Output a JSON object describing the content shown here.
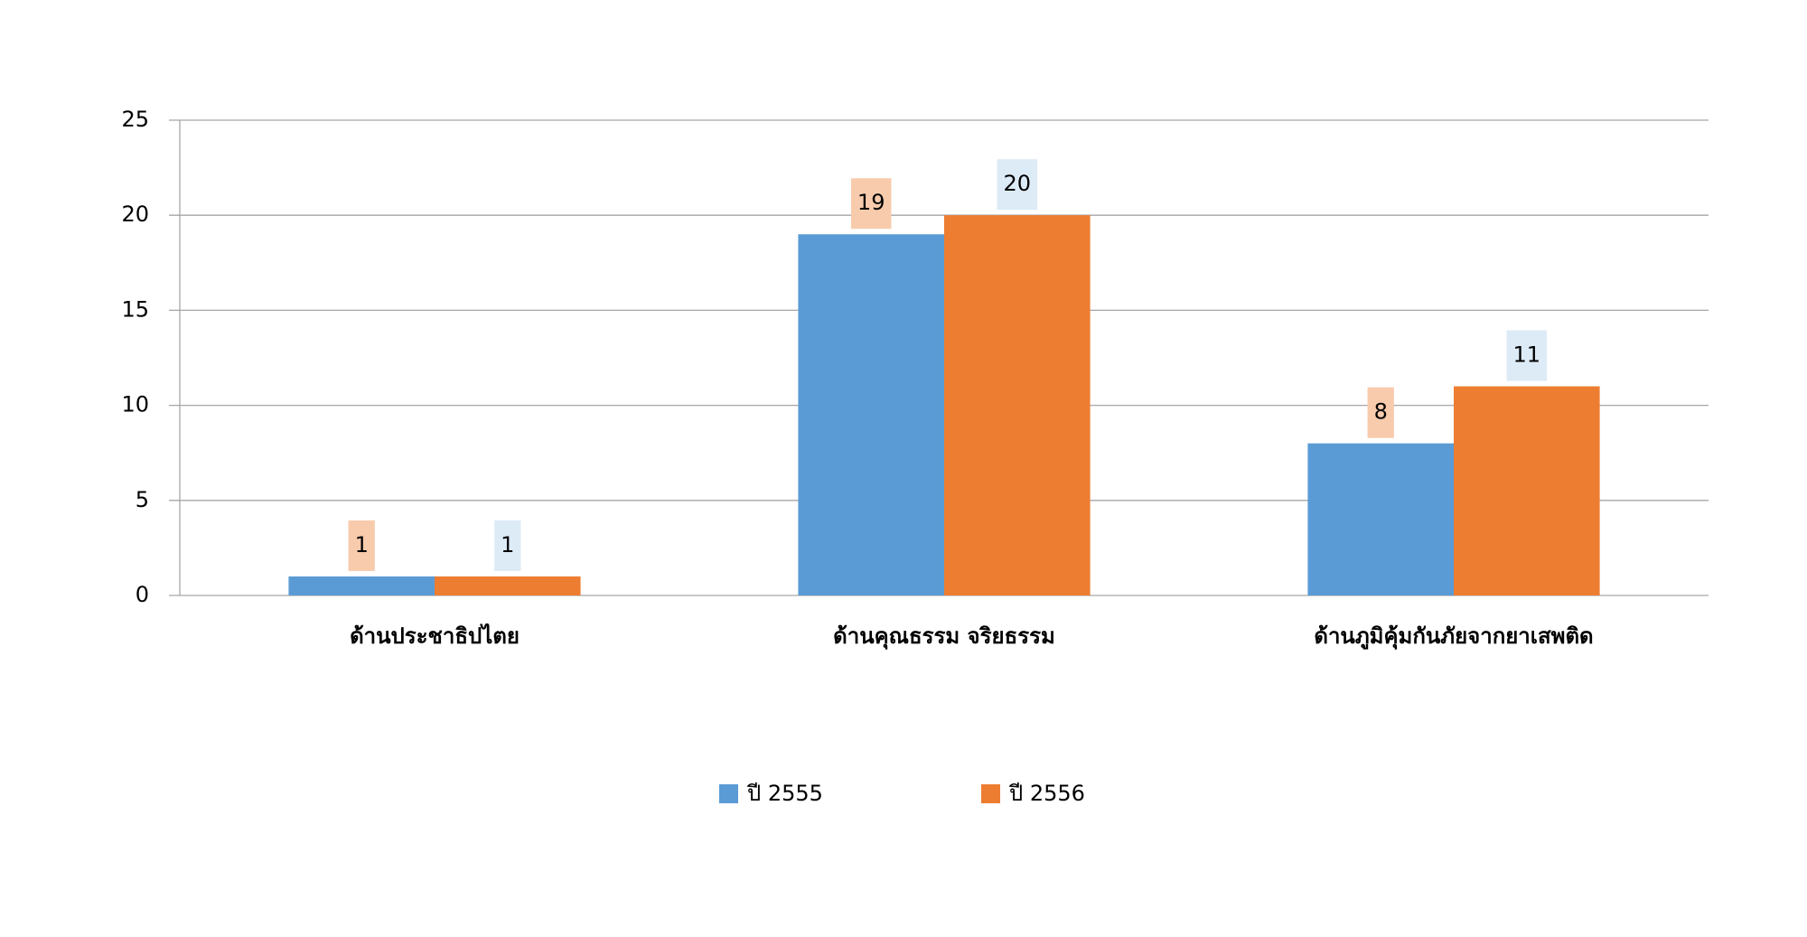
{
  "chart_data": {
    "type": "bar",
    "categories": [
      "ด้านประชาธิปไตย",
      "ด้านคุณธรรม จริยธรรม",
      "ด้านภูมิคุ้มกันภัยจากยาเสพติด"
    ],
    "series": [
      {
        "name": "ปี 2555",
        "color": "#5b9bd5",
        "label_bg": "#f8cbad",
        "values": [
          1,
          19,
          8
        ]
      },
      {
        "name": "ปี 2556",
        "color": "#ed7d31",
        "label_bg": "#ddebf7",
        "values": [
          1,
          20,
          11
        ]
      }
    ],
    "ylim": [
      0,
      25
    ],
    "yticks": [
      0,
      5,
      10,
      15,
      20,
      25
    ],
    "grid": true,
    "legend": "bottom"
  }
}
